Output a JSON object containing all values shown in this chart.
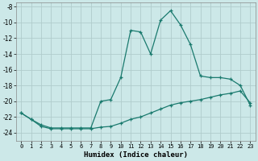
{
  "xlabel": "Humidex (Indice chaleur)",
  "ylabel": "",
  "background_color": "#cce8e8",
  "grid_color": "#b0cccc",
  "line_color": "#1a7a6e",
  "xlim": [
    -0.5,
    23.5
  ],
  "ylim": [
    -25,
    -7.5
  ],
  "yticks": [
    -8,
    -10,
    -12,
    -14,
    -16,
    -18,
    -20,
    -22,
    -24
  ],
  "xticks": [
    0,
    1,
    2,
    3,
    4,
    5,
    6,
    7,
    8,
    9,
    10,
    11,
    12,
    13,
    14,
    15,
    16,
    17,
    18,
    19,
    20,
    21,
    22,
    23
  ],
  "upper_x": [
    0,
    1,
    2,
    3,
    4,
    5,
    6,
    7,
    8,
    9,
    10,
    11,
    12,
    13,
    14,
    15,
    16,
    17,
    18,
    19,
    20,
    21,
    22,
    23
  ],
  "upper_y": [
    -21.5,
    -22.3,
    -23.0,
    -23.4,
    -23.4,
    -23.4,
    -23.4,
    -23.4,
    -20.0,
    -19.8,
    -17.0,
    -11.0,
    -11.2,
    -14.0,
    -9.7,
    -8.5,
    -10.3,
    -12.8,
    -16.8,
    -17.0,
    -17.0,
    -17.2,
    -18.0,
    -20.5
  ],
  "lower_x": [
    0,
    1,
    2,
    3,
    4,
    5,
    6,
    7,
    8,
    9,
    10,
    11,
    12,
    13,
    14,
    15,
    16,
    17,
    18,
    19,
    20,
    21,
    22,
    23
  ],
  "lower_y": [
    -21.5,
    -22.3,
    -23.2,
    -23.5,
    -23.5,
    -23.5,
    -23.5,
    -23.5,
    -23.3,
    -23.2,
    -22.8,
    -22.3,
    -22.0,
    -21.5,
    -21.0,
    -20.5,
    -20.2,
    -20.0,
    -19.8,
    -19.5,
    -19.2,
    -19.0,
    -18.7,
    -20.2
  ]
}
